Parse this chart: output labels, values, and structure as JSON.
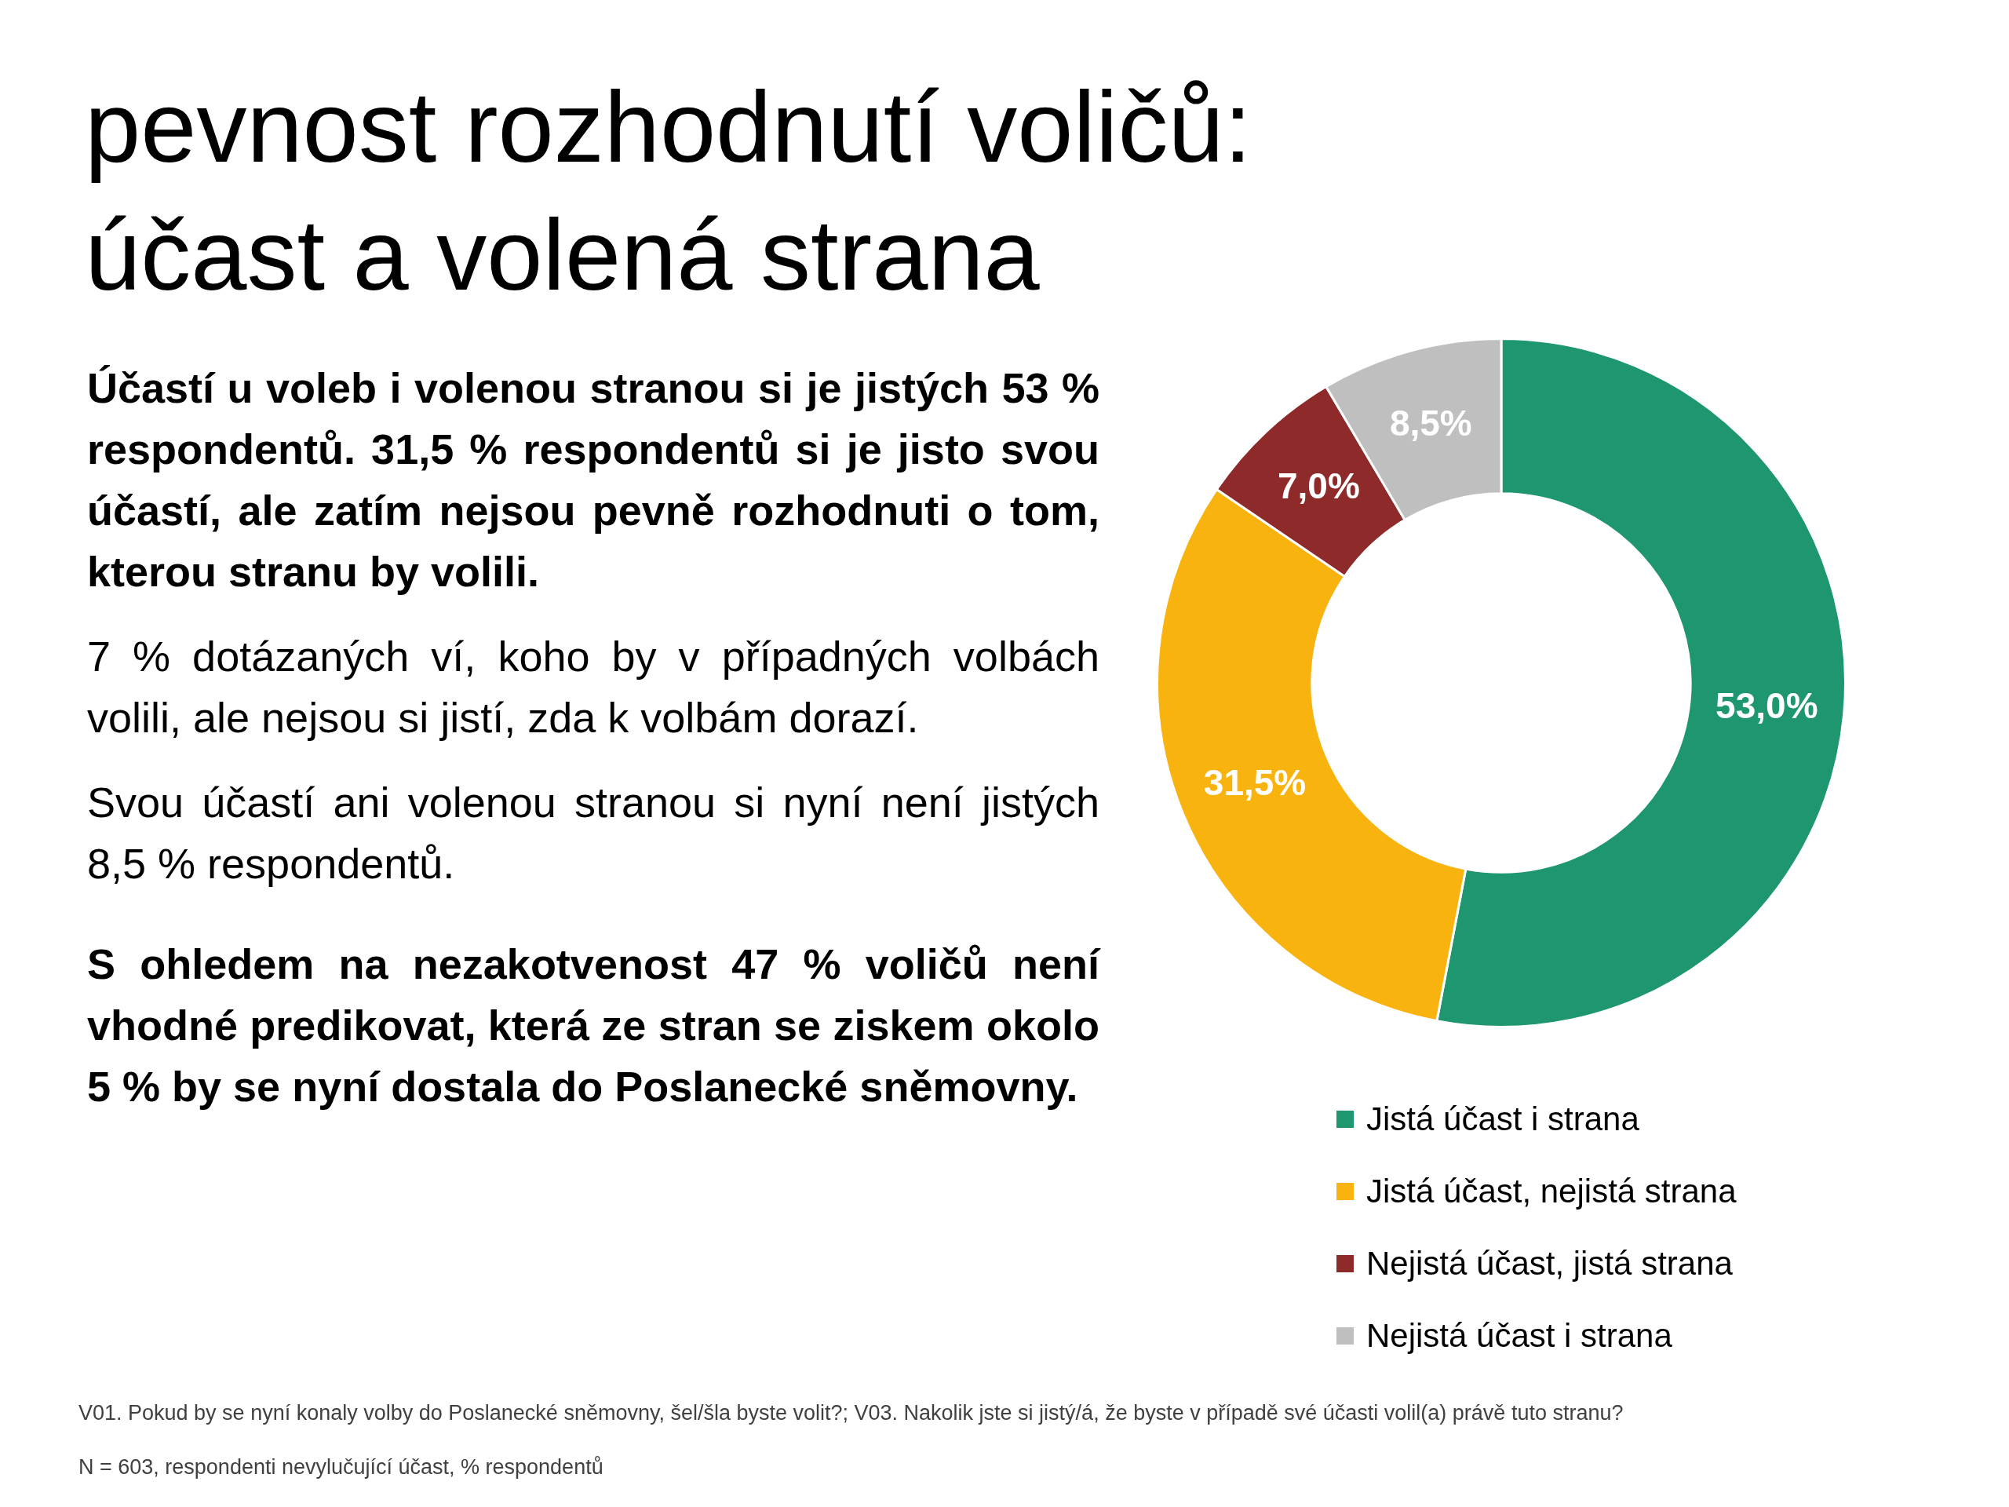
{
  "chart_data": {
    "type": "donut",
    "title": "pevnost rozhodnutí voličů: účast a volená strana",
    "categories": [
      "Jistá účast i strana",
      "Jistá účast, nejistá strana",
      "Nejistá účast, jistá strana",
      "Nejistá účast i strana"
    ],
    "values": [
      53.0,
      31.5,
      7.0,
      8.5
    ],
    "colors": [
      "#1e9670",
      "#f9b30f",
      "#8e2a2a",
      "#bfbfbf"
    ],
    "value_labels": [
      "53,0%",
      "31,5%",
      "7,0%",
      "8,5%"
    ],
    "legend": "bottom",
    "annotations": [
      "Účastí u voleb i volenou stranou si je jistých 53 % respondentů. 31,5 % respondentů si je jisto svou účastí, ale zatím nejsou pevně rozhodnuti o tom, kterou stranu by volili.",
      "7 % dotázaných ví, koho by v případných volbách volili, ale nejsou si jistí, zda k volbám dorazí.",
      "Svou účastí ani volenou stranou si nyní není jistých 8,5 % respondentů.",
      "S ohledem na nezakotvenost 47 % voličů není vhodné predikovat, která ze stran se ziskem okolo 5 % by se nyní dostala do Poslanecké sněmovny.",
      "V01. Pokud by se nyní konaly volby do Poslanecké sněmovny, šel/šla byste volit?; V03. Nakolik jste si jistý/á, že byste v případě své účasti volil(a) právě tuto stranu?",
      "N = 603, respondenti nevylučující účast, % respondentů"
    ]
  }
}
